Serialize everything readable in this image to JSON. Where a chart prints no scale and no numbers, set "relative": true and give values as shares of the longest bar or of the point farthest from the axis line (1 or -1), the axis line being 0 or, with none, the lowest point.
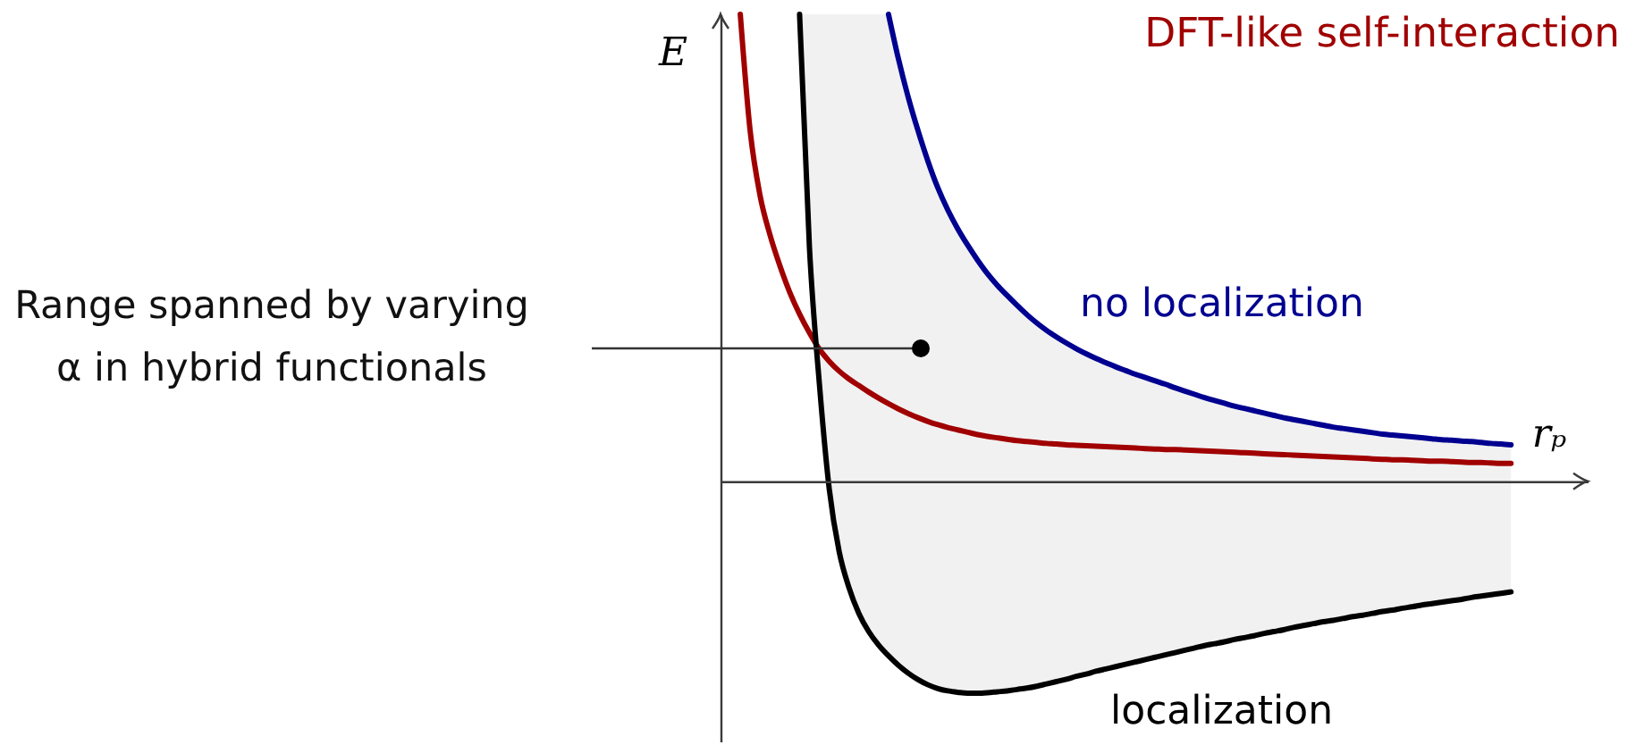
{
  "chart_data": {
    "type": "line",
    "relative": true,
    "xlabel": "rₚ",
    "ylabel": "E",
    "categories": [
      null,
      null,
      null,
      null,
      null,
      null,
      null,
      null,
      null,
      null,
      null,
      null,
      null,
      null,
      null,
      null,
      null,
      null,
      null,
      null,
      null,
      null,
      null,
      null,
      null,
      null,
      null,
      null,
      null,
      null,
      null,
      null,
      null,
      null,
      null,
      null,
      null,
      null,
      null,
      null,
      null,
      null,
      null,
      null,
      null,
      null,
      null,
      null,
      null,
      null,
      null,
      null,
      null,
      null,
      null,
      null,
      null,
      null,
      null,
      null,
      null,
      null,
      null,
      null,
      null,
      null,
      null,
      null,
      null,
      null,
      null,
      null,
      null,
      null,
      null,
      null,
      null,
      null,
      null,
      null,
      null
    ],
    "series": [
      {
        "name": "DFT-like self-interaction",
        "color": "#a00000",
        "values": [
          null,
          null,
          1.0,
          0.75,
          0.612,
          0.528,
          0.462,
          0.405,
          0.358,
          0.318,
          0.283,
          0.257,
          0.236,
          0.219,
          0.205,
          0.191,
          0.178,
          0.166,
          0.155,
          0.145,
          0.136,
          0.128,
          0.121,
          0.115,
          0.11,
          0.105,
          0.1,
          0.096,
          0.093,
          0.09,
          0.087,
          0.085,
          0.083,
          0.081,
          0.08,
          0.078,
          0.077,
          0.076,
          0.075,
          0.074,
          0.073,
          0.072,
          0.071,
          0.07,
          0.069,
          0.068,
          0.068,
          0.067,
          0.066,
          0.065,
          0.064,
          0.063,
          0.062,
          0.061,
          0.06,
          0.059,
          0.058,
          0.057,
          0.056,
          0.055,
          0.054,
          0.053,
          0.052,
          0.051,
          0.05,
          0.049,
          0.048,
          0.047,
          0.046,
          0.046,
          0.045,
          0.044,
          0.043,
          0.043,
          0.042,
          0.041,
          0.04,
          0.04,
          0.039,
          0.038,
          0.038
        ]
      },
      {
        "name": "no localization",
        "color": "#000090",
        "values": [
          null,
          null,
          null,
          null,
          null,
          null,
          null,
          null,
          null,
          null,
          null,
          null,
          null,
          null,
          null,
          null,
          null,
          1.0,
          0.905,
          0.822,
          0.75,
          0.685,
          0.628,
          0.581,
          0.541,
          0.506,
          0.474,
          0.445,
          0.42,
          0.398,
          0.377,
          0.357,
          0.339,
          0.323,
          0.309,
          0.296,
          0.284,
          0.273,
          0.263,
          0.254,
          0.245,
          0.237,
          0.229,
          0.222,
          0.215,
          0.208,
          0.2,
          0.193,
          0.186,
          0.179,
          0.173,
          0.167,
          0.161,
          0.156,
          0.151,
          0.146,
          0.141,
          0.136,
          0.132,
          0.128,
          0.124,
          0.12,
          0.116,
          0.113,
          0.11,
          0.107,
          0.104,
          0.101,
          0.099,
          0.097,
          0.095,
          0.093,
          0.091,
          0.089,
          0.088,
          0.086,
          0.085,
          0.083,
          0.081,
          0.08,
          0.078
        ]
      },
      {
        "name": "localization",
        "color": "#000000",
        "values": [
          null,
          null,
          null,
          null,
          null,
          null,
          null,
          null,
          1.0,
          0.5,
          0.21,
          -0.016,
          -0.15,
          -0.228,
          -0.283,
          -0.322,
          -0.351,
          -0.374,
          -0.394,
          -0.411,
          -0.425,
          -0.436,
          -0.444,
          -0.449,
          -0.452,
          -0.454,
          -0.454,
          -0.453,
          -0.451,
          -0.449,
          -0.446,
          -0.443,
          -0.439,
          -0.434,
          -0.429,
          -0.424,
          -0.418,
          -0.413,
          -0.407,
          -0.402,
          -0.397,
          -0.392,
          -0.387,
          -0.382,
          -0.377,
          -0.372,
          -0.367,
          -0.362,
          -0.357,
          -0.352,
          -0.348,
          -0.344,
          -0.339,
          -0.335,
          -0.331,
          -0.326,
          -0.322,
          -0.318,
          -0.313,
          -0.309,
          -0.305,
          -0.301,
          -0.298,
          -0.294,
          -0.29,
          -0.287,
          -0.283,
          -0.279,
          -0.276,
          -0.272,
          -0.269,
          -0.265,
          -0.262,
          -0.259,
          -0.256,
          -0.253,
          -0.249,
          -0.246,
          -0.243,
          -0.24,
          -0.237
        ],
        "lower": [
          null,
          null,
          null,
          null,
          null,
          null,
          null,
          null,
          1.0,
          0.5,
          0.21,
          -0.016,
          -0.15,
          -0.228,
          -0.283,
          -0.322,
          -0.351,
          -0.374,
          -0.394,
          -0.411,
          -0.425,
          -0.436,
          -0.444,
          -0.449,
          -0.452,
          -0.454,
          -0.454,
          -0.453,
          -0.451,
          -0.449,
          -0.446,
          -0.443,
          -0.439,
          -0.434,
          -0.429,
          -0.424,
          -0.418,
          -0.413,
          -0.407,
          -0.402,
          -0.397,
          -0.392,
          -0.387,
          -0.382,
          -0.377,
          -0.372,
          -0.367,
          -0.362,
          -0.357,
          -0.352,
          -0.348,
          -0.344,
          -0.339,
          -0.335,
          -0.331,
          -0.326,
          -0.322,
          -0.318,
          -0.313,
          -0.309,
          -0.305,
          -0.301,
          -0.298,
          -0.294,
          -0.29,
          -0.287,
          -0.283,
          -0.279,
          -0.276,
          -0.272,
          -0.269,
          -0.265,
          -0.262,
          -0.259,
          -0.256,
          -0.253,
          -0.249,
          -0.246,
          -0.243,
          -0.24,
          -0.237
        ],
        "upper": [
          null,
          null,
          null,
          null,
          null,
          null,
          null,
          null,
          1.0,
          1.0,
          1.0,
          1.0,
          1.0,
          1.0,
          1.0,
          1.0,
          1.0,
          1.0,
          0.905,
          0.822,
          0.75,
          0.685,
          0.628,
          0.581,
          0.541,
          0.506,
          0.474,
          0.445,
          0.42,
          0.398,
          0.377,
          0.357,
          0.339,
          0.323,
          0.309,
          0.296,
          0.284,
          0.273,
          0.263,
          0.254,
          0.245,
          0.237,
          0.229,
          0.222,
          0.215,
          0.208,
          0.2,
          0.193,
          0.186,
          0.179,
          0.173,
          0.167,
          0.161,
          0.156,
          0.151,
          0.146,
          0.141,
          0.136,
          0.132,
          0.128,
          0.124,
          0.12,
          0.116,
          0.113,
          0.11,
          0.107,
          0.104,
          0.101,
          0.099,
          0.097,
          0.095,
          0.093,
          0.091,
          0.089,
          0.088,
          0.086,
          0.085,
          0.083,
          0.081,
          0.08,
          0.078
        ]
      }
    ],
    "annotations": [
      "Range spanned by varying\nα in hybrid functionals"
    ]
  }
}
